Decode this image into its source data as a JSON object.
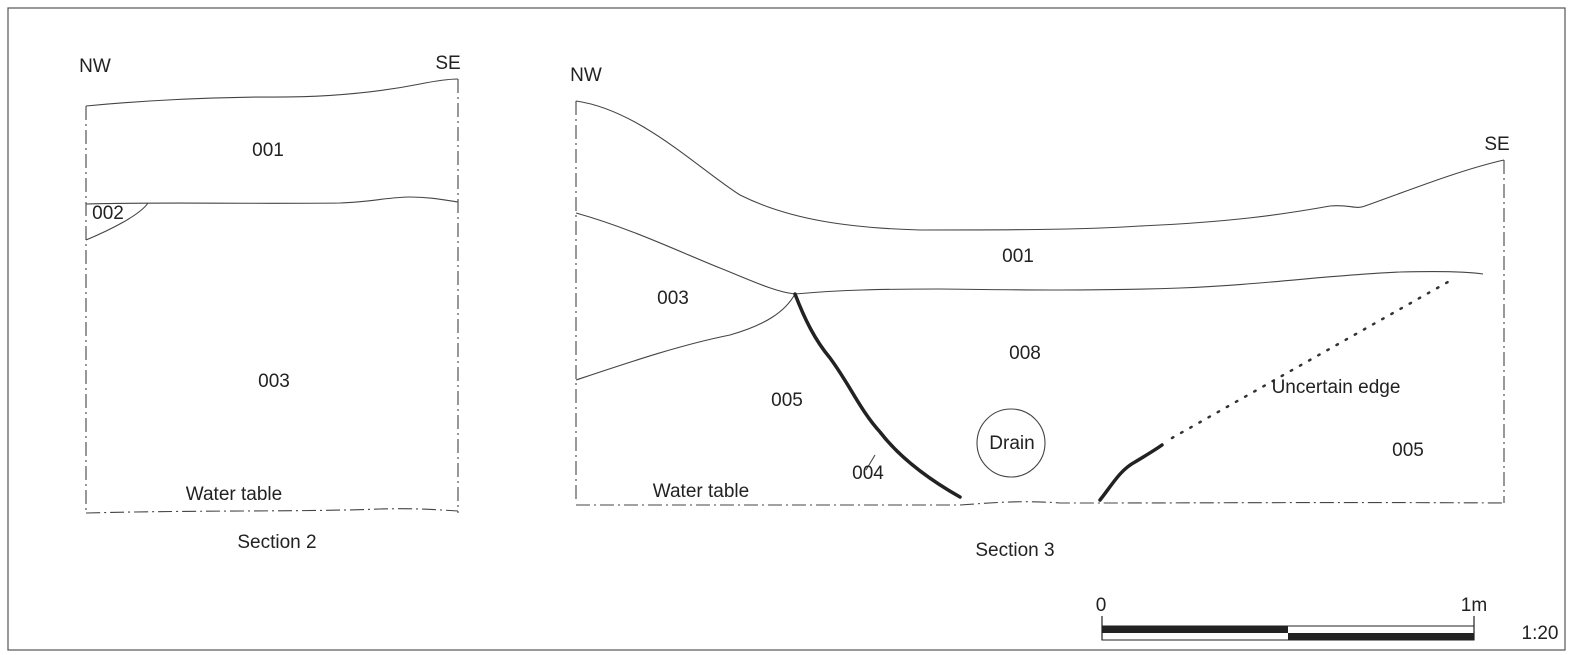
{
  "section_2": {
    "left_label": "NW",
    "right_label": "SE",
    "title": "Section 2",
    "layers": [
      "001",
      "002",
      "003"
    ],
    "water_table": "Water table"
  },
  "section_3": {
    "left_label": "NW",
    "right_label": "SE",
    "title": "Section 3",
    "layers": [
      "001",
      "003",
      "008",
      "005",
      "004",
      "005"
    ],
    "drain": "Drain",
    "uncertain_edge": "Uncertain edge",
    "water_table": "Water table"
  },
  "scale_bar": {
    "start": "0",
    "end": "1m",
    "ratio": "1:20"
  }
}
